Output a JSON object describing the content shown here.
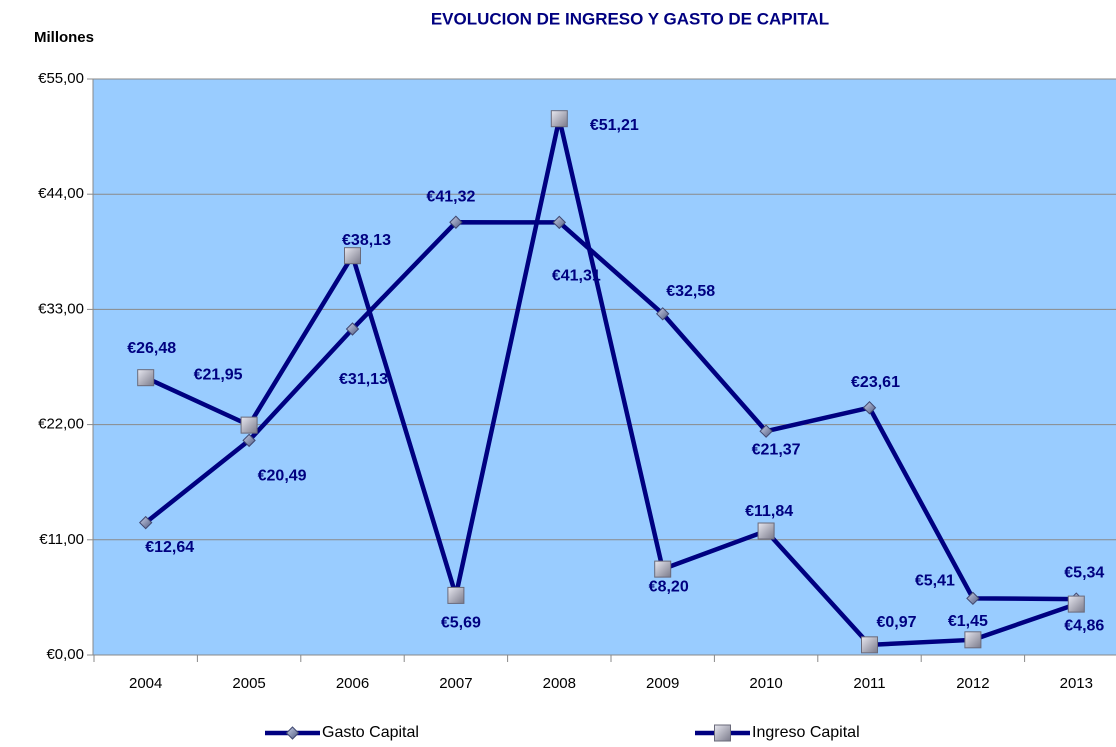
{
  "chart_data": {
    "type": "line",
    "title": "EVOLUCION DE INGRESO Y GASTO DE CAPITAL",
    "y_label": "Millones",
    "categories": [
      "2004",
      "2005",
      "2006",
      "2007",
      "2008",
      "2009",
      "2010",
      "2011",
      "2012",
      "2013"
    ],
    "series": [
      {
        "name": "Gasto Capital",
        "color": "#000080",
        "marker": "diamond",
        "values": [
          12.64,
          20.49,
          31.13,
          41.32,
          41.31,
          32.58,
          21.37,
          23.61,
          5.41,
          5.34
        ],
        "value_labels": [
          "€12,64",
          "€20,49",
          "€31,13",
          "€41,32",
          "€41,31",
          "€32,58",
          "€21,37",
          "€23,61",
          "€5,41",
          "€5,34"
        ]
      },
      {
        "name": "Ingreso Capital",
        "color": "#000080",
        "marker": "square",
        "values": [
          26.48,
          21.95,
          38.13,
          5.69,
          51.21,
          8.2,
          11.84,
          0.97,
          1.45,
          4.86
        ],
        "value_labels": [
          "€26,48",
          "€21,95",
          "€38,13",
          "€5,69",
          "€51,21",
          "€8,20",
          "€11,84",
          "€0,97",
          "€1,45",
          "€4,86"
        ]
      }
    ],
    "ylim": [
      0,
      55
    ],
    "yticks": [
      {
        "value": 0,
        "label": "€0,00"
      },
      {
        "value": 11,
        "label": "€11,00"
      },
      {
        "value": 22,
        "label": "€22,00"
      },
      {
        "value": 33,
        "label": "€33,00"
      },
      {
        "value": 44,
        "label": "€44,00"
      },
      {
        "value": 55,
        "label": "€55,00"
      }
    ],
    "grid": true,
    "legend": "bottom"
  }
}
